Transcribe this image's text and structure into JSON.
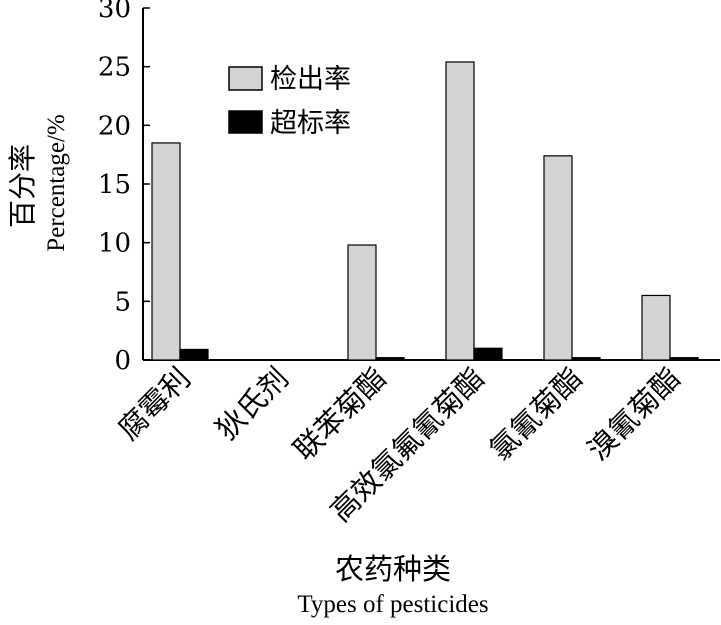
{
  "chart_data": {
    "type": "bar",
    "ylabel_zh": "百分率",
    "ylabel_en": "Percentage/%",
    "xlabel_zh": "农药种类",
    "xlabel_en": "Types of pesticides",
    "ylim": [
      0,
      30
    ],
    "yticks": [
      0,
      5,
      10,
      15,
      20,
      25,
      30
    ],
    "categories": [
      "腐霉利",
      "狄氏剂",
      "联苯菊酯",
      "高效氯氟氰菊酯",
      "氯氰菊酯",
      "溴氰菊酯"
    ],
    "series": [
      {
        "name": "检出率",
        "color": "#d3d3d3",
        "values": [
          18.5,
          0,
          9.8,
          25.4,
          17.4,
          5.5
        ]
      },
      {
        "name": "超标率",
        "color": "#000000",
        "values": [
          0.9,
          0,
          0.2,
          1.0,
          0.2,
          0.2
        ]
      }
    ],
    "legend_position": "top-center",
    "grid": false
  }
}
